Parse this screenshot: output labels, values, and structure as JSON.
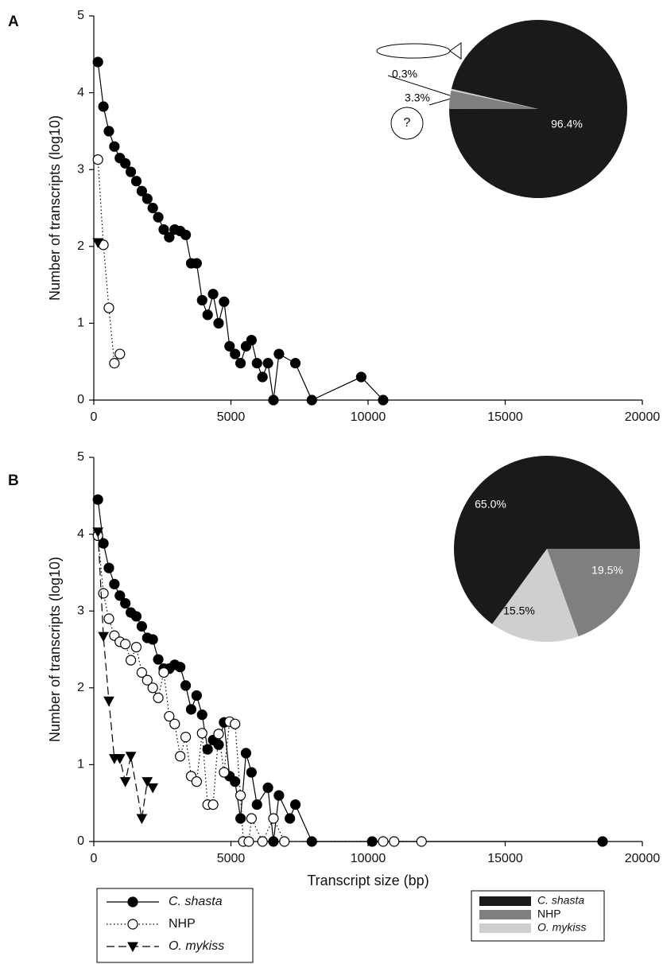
{
  "chart_data": [
    {
      "type": "line",
      "panel": "A",
      "ylabel": "Number of transcripts (log10)",
      "xlim": [
        0,
        20000
      ],
      "ylim": [
        0,
        5
      ],
      "xticks": [
        0,
        5000,
        10000,
        15000,
        20000
      ],
      "yticks": [
        0,
        1,
        2,
        3,
        4,
        5
      ],
      "series": [
        {
          "color": "#000000",
          "linestyle": "solid",
          "marker": "circle-filled",
          "x": [
            150,
            350,
            550,
            750,
            950,
            1150,
            1350,
            1550,
            1750,
            1950,
            2150,
            2350,
            2550,
            2750,
            2950,
            3150,
            3350,
            3550,
            3750,
            3950,
            4150,
            4350,
            4550,
            4750,
            4950,
            5150,
            5350,
            5550,
            5750,
            5950,
            6150,
            6350,
            6550,
            6750,
            7350,
            7950,
            9750,
            10550
          ],
          "values": [
            4.4,
            3.82,
            3.5,
            3.3,
            3.15,
            3.08,
            2.97,
            2.85,
            2.72,
            2.62,
            2.5,
            2.38,
            2.22,
            2.12,
            2.22,
            2.2,
            2.15,
            1.78,
            1.78,
            1.3,
            1.11,
            1.38,
            1.0,
            1.28,
            0.7,
            0.6,
            0.48,
            0.7,
            0.78,
            0.48,
            0.3,
            0.48,
            0,
            0.6,
            0.48,
            0,
            0.3,
            0
          ]
        },
        {
          "color": "#000000",
          "linestyle": "dotted",
          "marker": "circle-open",
          "x": [
            150,
            350,
            550,
            750,
            950
          ],
          "values": [
            3.13,
            2.02,
            1.2,
            0.48,
            0.6
          ]
        },
        {
          "color": "#000000",
          "linestyle": "dashed",
          "marker": "triangle-down",
          "x": [
            150
          ],
          "values": [
            2.05
          ]
        }
      ]
    },
    {
      "type": "pie",
      "values": [
        96.4,
        3.3,
        0.3
      ],
      "value_labels": [
        "96.4%",
        "3.3%",
        "0.3%"
      ],
      "colors": [
        "#1a1a1a",
        "#7f7f7f",
        "#cfcfcf"
      ]
    },
    {
      "type": "line",
      "panel": "B",
      "xlabel": "Transcript size (bp)",
      "ylabel": "Number of transcripts (log10)",
      "xlim": [
        0,
        20000
      ],
      "ylim": [
        0,
        5
      ],
      "xticks": [
        0,
        5000,
        10000,
        15000,
        20000
      ],
      "yticks": [
        0,
        1,
        2,
        3,
        4,
        5
      ],
      "series": [
        {
          "name": "C. shasta",
          "color": "#000000",
          "linestyle": "solid",
          "marker": "circle-filled",
          "x": [
            150,
            350,
            550,
            750,
            950,
            1150,
            1350,
            1550,
            1750,
            1950,
            2150,
            2350,
            2550,
            2750,
            2950,
            3150,
            3350,
            3550,
            3750,
            3950,
            4150,
            4350,
            4550,
            4750,
            4950,
            5150,
            5350,
            5550,
            5750,
            5950,
            6350,
            6550,
            6750,
            7150,
            7350,
            7950,
            10150,
            18550
          ],
          "values": [
            4.45,
            3.88,
            3.56,
            3.35,
            3.2,
            3.1,
            2.98,
            2.93,
            2.8,
            2.65,
            2.63,
            2.37,
            2.25,
            2.25,
            2.3,
            2.27,
            2.03,
            1.72,
            1.9,
            1.65,
            1.2,
            1.32,
            1.26,
            1.55,
            0.85,
            0.78,
            0.3,
            1.15,
            0.9,
            0.48,
            0.7,
            0,
            0.6,
            0.3,
            0.48,
            0,
            0,
            0
          ]
        },
        {
          "name": "NHP",
          "color": "#000000",
          "linestyle": "dotted",
          "marker": "circle-open",
          "x": [
            150,
            350,
            550,
            750,
            950,
            1150,
            1350,
            1550,
            1750,
            1950,
            2150,
            2350,
            2550,
            2750,
            2950,
            3150,
            3350,
            3550,
            3750,
            3950,
            4150,
            4350,
            4550,
            4750,
            4950,
            5150,
            5350,
            5450,
            5650,
            5750,
            6150,
            6550,
            6950,
            10550,
            10950,
            11950
          ],
          "values": [
            3.98,
            3.23,
            2.9,
            2.68,
            2.6,
            2.57,
            2.36,
            2.53,
            2.2,
            2.1,
            2.0,
            1.87,
            2.2,
            1.63,
            1.53,
            1.11,
            1.36,
            0.85,
            0.78,
            1.41,
            0.48,
            0.48,
            1.4,
            0.9,
            1.56,
            1.53,
            0.6,
            0,
            0,
            0.3,
            0,
            0.3,
            0,
            0,
            0,
            0
          ]
        },
        {
          "name": "O. mykiss",
          "color": "#000000",
          "linestyle": "dashed",
          "marker": "triangle-down",
          "x": [
            150,
            350,
            550,
            750,
            950,
            1150,
            1350,
            1750,
            1950,
            2150
          ],
          "values": [
            4.03,
            2.67,
            1.83,
            1.08,
            1.08,
            0.78,
            1.11,
            0.3,
            0.78,
            0.7
          ]
        }
      ]
    },
    {
      "type": "pie",
      "categories": [
        "C. shasta",
        "NHP",
        "O. mykiss"
      ],
      "values": [
        65.0,
        19.5,
        15.5
      ],
      "value_labels": [
        "65.0%",
        "19.5%",
        "15.5%"
      ],
      "colors": [
        "#1a1a1a",
        "#7f7f7f",
        "#cfcfcf"
      ]
    }
  ]
}
